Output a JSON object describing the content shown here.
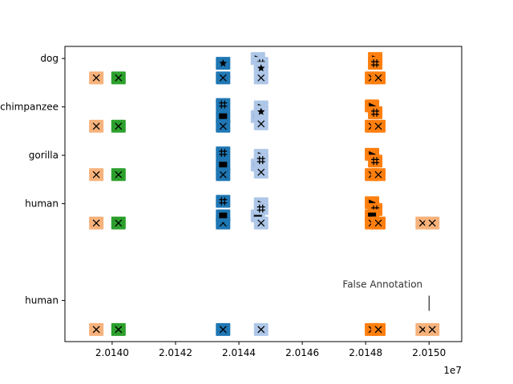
{
  "chart_data": {
    "type": "scatter",
    "title": "",
    "xlabel": "",
    "ylabel": "",
    "x_offset_label": "1e7",
    "xlim": [
      20138510,
      20151030
    ],
    "ylim": [
      -0.85,
      5.25
    ],
    "x_ticks": [
      20140000,
      20142000,
      20144000,
      20146000,
      20148000,
      20150000
    ],
    "x_tick_labels": [
      "2.0140",
      "2.0142",
      "2.0144",
      "2.0146",
      "2.0148",
      "2.0150"
    ],
    "y_ticks": [
      5,
      4,
      3,
      2,
      0
    ],
    "y_tick_labels": [
      "dog",
      "chimpanzee",
      "gorilla",
      "human",
      "human"
    ],
    "grid": false,
    "colors": {
      "peach": "#f7b27b",
      "green": "#2ca02c",
      "dark_blue": "#1f77b4",
      "light_blue": "#aec7e8",
      "orange": "#ff7f0e"
    },
    "annotation": {
      "text": "False Annotation",
      "x": 20150000,
      "y": 0
    },
    "points": [
      {
        "x": 20139500,
        "y": 4.6,
        "color": "peach",
        "marker": "x"
      },
      {
        "x": 20140200,
        "y": 4.6,
        "color": "green",
        "marker": "x"
      },
      {
        "x": 20143500,
        "y": 4.6,
        "color": "dark_blue",
        "marker": "x"
      },
      {
        "x": 20144700,
        "y": 4.6,
        "color": "light_blue",
        "marker": "x"
      },
      {
        "x": 20148200,
        "y": 4.6,
        "color": "orange",
        "marker": "x"
      },
      {
        "x": 20148400,
        "y": 4.6,
        "color": "orange",
        "marker": "x"
      },
      {
        "x": 20143500,
        "y": 4.9,
        "color": "dark_blue",
        "marker": "star"
      },
      {
        "x": 20144600,
        "y": 5.0,
        "color": "light_blue",
        "marker": "triangle"
      },
      {
        "x": 20144700,
        "y": 4.9,
        "color": "light_blue",
        "marker": "plus"
      },
      {
        "x": 20144700,
        "y": 4.8,
        "color": "light_blue",
        "marker": "star"
      },
      {
        "x": 20148300,
        "y": 5.0,
        "color": "orange",
        "marker": "triangle"
      },
      {
        "x": 20148300,
        "y": 4.9,
        "color": "orange",
        "marker": "plus"
      },
      {
        "x": 20139500,
        "y": 3.6,
        "color": "peach",
        "marker": "x"
      },
      {
        "x": 20140200,
        "y": 3.6,
        "color": "green",
        "marker": "x"
      },
      {
        "x": 20143500,
        "y": 3.6,
        "color": "dark_blue",
        "marker": "x"
      },
      {
        "x": 20143500,
        "y": 3.8,
        "color": "dark_blue",
        "marker": "square"
      },
      {
        "x": 20143500,
        "y": 4.05,
        "color": "dark_blue",
        "marker": "plus"
      },
      {
        "x": 20144600,
        "y": 3.8,
        "color": "light_blue",
        "marker": "square"
      },
      {
        "x": 20144700,
        "y": 3.65,
        "color": "light_blue",
        "marker": "x"
      },
      {
        "x": 20144700,
        "y": 4.0,
        "color": "light_blue",
        "marker": "triangle"
      },
      {
        "x": 20144700,
        "y": 3.9,
        "color": "light_blue",
        "marker": "star"
      },
      {
        "x": 20148200,
        "y": 4.02,
        "color": "orange",
        "marker": "triangle"
      },
      {
        "x": 20148300,
        "y": 3.88,
        "color": "orange",
        "marker": "plus"
      },
      {
        "x": 20148200,
        "y": 3.6,
        "color": "orange",
        "marker": "x"
      },
      {
        "x": 20148400,
        "y": 3.6,
        "color": "orange",
        "marker": "x"
      },
      {
        "x": 20139500,
        "y": 2.6,
        "color": "peach",
        "marker": "x"
      },
      {
        "x": 20140200,
        "y": 2.6,
        "color": "green",
        "marker": "x"
      },
      {
        "x": 20143500,
        "y": 2.6,
        "color": "dark_blue",
        "marker": "x"
      },
      {
        "x": 20143500,
        "y": 2.8,
        "color": "dark_blue",
        "marker": "square"
      },
      {
        "x": 20143500,
        "y": 3.05,
        "color": "dark_blue",
        "marker": "plus"
      },
      {
        "x": 20144600,
        "y": 2.8,
        "color": "light_blue",
        "marker": "square"
      },
      {
        "x": 20144700,
        "y": 2.65,
        "color": "light_blue",
        "marker": "x"
      },
      {
        "x": 20144700,
        "y": 3.0,
        "color": "light_blue",
        "marker": "triangle"
      },
      {
        "x": 20144700,
        "y": 2.9,
        "color": "light_blue",
        "marker": "plus"
      },
      {
        "x": 20148200,
        "y": 3.02,
        "color": "orange",
        "marker": "triangle"
      },
      {
        "x": 20148300,
        "y": 2.88,
        "color": "orange",
        "marker": "plus"
      },
      {
        "x": 20148200,
        "y": 2.6,
        "color": "orange",
        "marker": "x"
      },
      {
        "x": 20148400,
        "y": 2.6,
        "color": "orange",
        "marker": "x"
      },
      {
        "x": 20139500,
        "y": 1.6,
        "color": "peach",
        "marker": "x"
      },
      {
        "x": 20140200,
        "y": 1.6,
        "color": "green",
        "marker": "x"
      },
      {
        "x": 20143500,
        "y": 1.6,
        "color": "dark_blue",
        "marker": "x"
      },
      {
        "x": 20143500,
        "y": 1.75,
        "color": "dark_blue",
        "marker": "square"
      },
      {
        "x": 20143500,
        "y": 2.05,
        "color": "dark_blue",
        "marker": "plus"
      },
      {
        "x": 20144600,
        "y": 1.75,
        "color": "light_blue",
        "marker": "square"
      },
      {
        "x": 20144700,
        "y": 1.6,
        "color": "light_blue",
        "marker": "x"
      },
      {
        "x": 20144700,
        "y": 2.0,
        "color": "light_blue",
        "marker": "triangle"
      },
      {
        "x": 20144700,
        "y": 1.9,
        "color": "light_blue",
        "marker": "plus"
      },
      {
        "x": 20148200,
        "y": 2.02,
        "color": "orange",
        "marker": "triangle"
      },
      {
        "x": 20148300,
        "y": 1.88,
        "color": "orange",
        "marker": "plus"
      },
      {
        "x": 20148200,
        "y": 1.75,
        "color": "orange",
        "marker": "square"
      },
      {
        "x": 20148200,
        "y": 1.6,
        "color": "orange",
        "marker": "x"
      },
      {
        "x": 20148400,
        "y": 1.6,
        "color": "orange",
        "marker": "x"
      },
      {
        "x": 20149800,
        "y": 1.6,
        "color": "peach",
        "marker": "x"
      },
      {
        "x": 20150100,
        "y": 1.6,
        "color": "peach",
        "marker": "x"
      },
      {
        "x": 20139500,
        "y": -0.6,
        "color": "peach",
        "marker": "x"
      },
      {
        "x": 20140200,
        "y": -0.6,
        "color": "green",
        "marker": "x"
      },
      {
        "x": 20143500,
        "y": -0.6,
        "color": "dark_blue",
        "marker": "x"
      },
      {
        "x": 20144700,
        "y": -0.6,
        "color": "light_blue",
        "marker": "x"
      },
      {
        "x": 20148200,
        "y": -0.6,
        "color": "orange",
        "marker": "x"
      },
      {
        "x": 20148400,
        "y": -0.6,
        "color": "orange",
        "marker": "x"
      },
      {
        "x": 20149800,
        "y": -0.6,
        "color": "peach",
        "marker": "x"
      },
      {
        "x": 20150100,
        "y": -0.6,
        "color": "peach",
        "marker": "x"
      }
    ]
  }
}
